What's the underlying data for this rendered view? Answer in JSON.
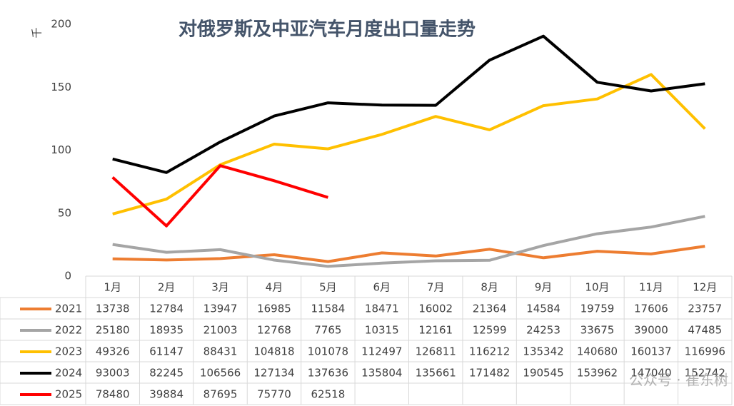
{
  "chart_data": {
    "type": "line",
    "title": "对俄罗斯及中亚汽车月度出口量走势",
    "y_axis_label": "千",
    "categories": [
      "1月",
      "2月",
      "3月",
      "4月",
      "5月",
      "6月",
      "7月",
      "8月",
      "9月",
      "10月",
      "11月",
      "12月"
    ],
    "ylim": [
      0,
      200000
    ],
    "yticks": [
      {
        "value": 0,
        "label": "0"
      },
      {
        "value": 50000,
        "label": "50"
      },
      {
        "value": 100000,
        "label": "100"
      },
      {
        "value": 150000,
        "label": "150"
      },
      {
        "value": 200000,
        "label": "200"
      }
    ],
    "grid": false,
    "legend": "bottom-left",
    "series": [
      {
        "name": "2021",
        "color": "#ed7d31",
        "values": [
          13738,
          12784,
          13947,
          16985,
          11584,
          18471,
          16002,
          21364,
          14584,
          19759,
          17606,
          23757
        ]
      },
      {
        "name": "2022",
        "color": "#a5a5a5",
        "values": [
          25180,
          18935,
          21003,
          12768,
          7765,
          10315,
          12161,
          12599,
          24253,
          33675,
          39000,
          47485
        ]
      },
      {
        "name": "2023",
        "color": "#ffc000",
        "values": [
          49326,
          61147,
          88431,
          104818,
          101078,
          112497,
          126811,
          116212,
          135342,
          140680,
          160137,
          116996
        ]
      },
      {
        "name": "2024",
        "color": "#000000",
        "values": [
          93003,
          82245,
          106566,
          127134,
          137636,
          135804,
          135661,
          171482,
          190545,
          153962,
          147040,
          152742
        ]
      },
      {
        "name": "2025",
        "color": "#ff0000",
        "values": [
          78480,
          39884,
          87695,
          75770,
          62518,
          null,
          null,
          null,
          null,
          null,
          null,
          null
        ]
      }
    ],
    "watermark": "公众号 · 崔东树"
  }
}
